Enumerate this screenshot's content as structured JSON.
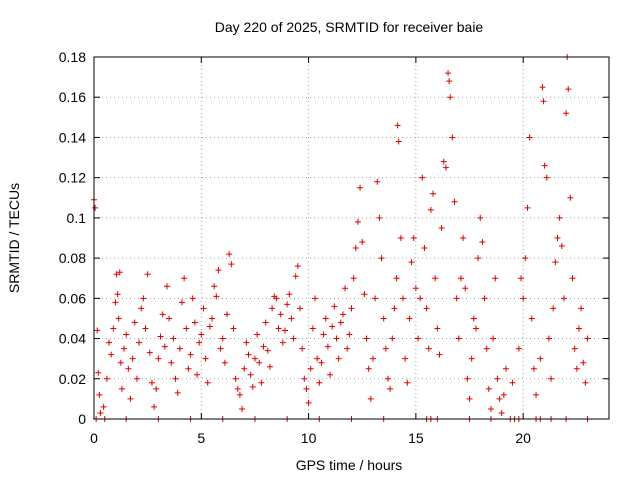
{
  "colors": {
    "series": "#e00000",
    "grid": "#a0a0a0",
    "axis": "#000000"
  },
  "chart_data": {
    "type": "scatter",
    "title": "Day 220 of 2025, SRMTID for receiver baie",
    "xlabel": "GPS time / hours",
    "ylabel": "SRMTID / TECUs",
    "xlim": [
      0,
      24
    ],
    "ylim": [
      0,
      0.18
    ],
    "xticks": [
      0,
      5,
      10,
      15,
      20
    ],
    "xtick_labels": [
      "0",
      "5",
      "10",
      "15",
      "20"
    ],
    "yticks": [
      0,
      0.02,
      0.04,
      0.06,
      0.08,
      0.1,
      0.12,
      0.14,
      0.16,
      0.18
    ],
    "ytick_labels": [
      "0",
      "0.02",
      "0.04",
      "0.06",
      "0.08",
      "0.1",
      "0.12",
      "0.14",
      "0.16",
      "0.18"
    ],
    "grid": true,
    "marker": "+",
    "series": [
      {
        "name": "SRMTID",
        "points": [
          [
            0.0,
            0.109
          ],
          [
            0.05,
            0.105
          ],
          [
            0.15,
            0.044
          ],
          [
            0.2,
            0.023
          ],
          [
            0.25,
            0.012
          ],
          [
            0.3,
            0.003
          ],
          [
            0.45,
            0.006
          ],
          [
            0.6,
            0.02
          ],
          [
            0.7,
            0.038
          ],
          [
            0.8,
            0.032
          ],
          [
            0.9,
            0.045
          ],
          [
            1.0,
            0.058
          ],
          [
            1.05,
            0.072
          ],
          [
            1.1,
            0.062
          ],
          [
            1.15,
            0.05
          ],
          [
            1.2,
            0.073
          ],
          [
            1.25,
            0.028
          ],
          [
            1.3,
            0.015
          ],
          [
            1.4,
            0.035
          ],
          [
            1.5,
            0.042
          ],
          [
            1.6,
            0.025
          ],
          [
            1.7,
            0.01
          ],
          [
            1.8,
            0.03
          ],
          [
            1.9,
            0.048
          ],
          [
            2.0,
            0.02
          ],
          [
            2.1,
            0.038
          ],
          [
            2.2,
            0.055
          ],
          [
            2.3,
            0.06
          ],
          [
            2.4,
            0.045
          ],
          [
            2.5,
            0.072
          ],
          [
            2.6,
            0.033
          ],
          [
            2.7,
            0.018
          ],
          [
            2.8,
            0.006
          ],
          [
            2.9,
            0.015
          ],
          [
            3.0,
            0.03
          ],
          [
            3.1,
            0.041
          ],
          [
            3.2,
            0.052
          ],
          [
            3.3,
            0.036
          ],
          [
            3.4,
            0.066
          ],
          [
            3.5,
            0.05
          ],
          [
            3.6,
            0.028
          ],
          [
            3.7,
            0.04
          ],
          [
            3.8,
            0.02
          ],
          [
            3.9,
            0.013
          ],
          [
            4.0,
            0.035
          ],
          [
            4.1,
            0.058
          ],
          [
            4.2,
            0.07
          ],
          [
            4.3,
            0.045
          ],
          [
            4.4,
            0.025
          ],
          [
            4.5,
            0.032
          ],
          [
            4.6,
            0.06
          ],
          [
            4.7,
            0.048
          ],
          [
            4.8,
            0.022
          ],
          [
            4.9,
            0.038
          ],
          [
            5.0,
            0.042
          ],
          [
            5.1,
            0.055
          ],
          [
            5.2,
            0.03
          ],
          [
            5.3,
            0.018
          ],
          [
            5.4,
            0.046
          ],
          [
            5.5,
            0.05
          ],
          [
            5.6,
            0.066
          ],
          [
            5.7,
            0.061
          ],
          [
            5.8,
            0.074
          ],
          [
            5.9,
            0.035
          ],
          [
            6.0,
            0.04
          ],
          [
            6.1,
            0.028
          ],
          [
            6.2,
            0.052
          ],
          [
            6.3,
            0.082
          ],
          [
            6.4,
            0.077
          ],
          [
            6.5,
            0.045
          ],
          [
            6.6,
            0.02
          ],
          [
            6.7,
            0.015
          ],
          [
            6.8,
            0.012
          ],
          [
            6.9,
            0.005
          ],
          [
            7.0,
            0.025
          ],
          [
            7.1,
            0.038
          ],
          [
            7.2,
            0.032
          ],
          [
            7.3,
            0.022
          ],
          [
            7.4,
            0.016
          ],
          [
            7.5,
            0.03
          ],
          [
            7.6,
            0.042
          ],
          [
            7.7,
            0.028
          ],
          [
            7.8,
            0.018
          ],
          [
            7.9,
            0.036
          ],
          [
            8.0,
            0.048
          ],
          [
            8.1,
            0.034
          ],
          [
            8.2,
            0.026
          ],
          [
            8.3,
            0.055
          ],
          [
            8.4,
            0.061
          ],
          [
            8.5,
            0.06
          ],
          [
            8.6,
            0.045
          ],
          [
            8.7,
            0.052
          ],
          [
            8.8,
            0.038
          ],
          [
            8.9,
            0.044
          ],
          [
            9.0,
            0.057
          ],
          [
            9.1,
            0.062
          ],
          [
            9.2,
            0.05
          ],
          [
            9.3,
            0.04
          ],
          [
            9.4,
            0.071
          ],
          [
            9.5,
            0.076
          ],
          [
            9.6,
            0.055
          ],
          [
            9.7,
            0.035
          ],
          [
            9.8,
            0.02
          ],
          [
            9.9,
            0.015
          ],
          [
            10.0,
            0.008
          ],
          [
            10.1,
            0.025
          ],
          [
            10.2,
            0.045
          ],
          [
            10.3,
            0.06
          ],
          [
            10.4,
            0.03
          ],
          [
            10.5,
            0.018
          ],
          [
            10.6,
            0.028
          ],
          [
            10.7,
            0.042
          ],
          [
            10.8,
            0.05
          ],
          [
            10.9,
            0.036
          ],
          [
            11.0,
            0.022
          ],
          [
            11.1,
            0.046
          ],
          [
            11.2,
            0.056
          ],
          [
            11.3,
            0.04
          ],
          [
            11.4,
            0.03
          ],
          [
            11.5,
            0.048
          ],
          [
            11.6,
            0.052
          ],
          [
            11.7,
            0.065
          ],
          [
            11.8,
            0.035
          ],
          [
            11.9,
            0.042
          ],
          [
            12.0,
            0.055
          ],
          [
            12.1,
            0.07
          ],
          [
            12.2,
            0.085
          ],
          [
            12.3,
            0.098
          ],
          [
            12.4,
            0.115
          ],
          [
            12.5,
            0.088
          ],
          [
            12.6,
            0.062
          ],
          [
            12.7,
            0.04
          ],
          [
            12.8,
            0.025
          ],
          [
            12.9,
            0.01
          ],
          [
            13.0,
            0.03
          ],
          [
            13.1,
            0.06
          ],
          [
            13.2,
            0.118
          ],
          [
            13.3,
            0.1
          ],
          [
            13.4,
            0.08
          ],
          [
            13.5,
            0.05
          ],
          [
            13.6,
            0.035
          ],
          [
            13.7,
            0.02
          ],
          [
            13.8,
            0.015
          ],
          [
            13.9,
            0.04
          ],
          [
            14.0,
            0.055
          ],
          [
            14.1,
            0.07
          ],
          [
            14.15,
            0.146
          ],
          [
            14.2,
            0.138
          ],
          [
            14.3,
            0.09
          ],
          [
            14.4,
            0.06
          ],
          [
            14.5,
            0.03
          ],
          [
            14.6,
            0.018
          ],
          [
            14.7,
            0.05
          ],
          [
            14.8,
            0.078
          ],
          [
            14.9,
            0.09
          ],
          [
            15.0,
            0.065
          ],
          [
            15.1,
            0.04
          ],
          [
            15.2,
            0.06
          ],
          [
            15.3,
            0.12
          ],
          [
            15.4,
            0.085
          ],
          [
            15.5,
            0.055
          ],
          [
            15.6,
            0.035
          ],
          [
            15.7,
            0.104
          ],
          [
            15.8,
            0.112
          ],
          [
            15.9,
            0.07
          ],
          [
            16.0,
            0.045
          ],
          [
            16.1,
            0.032
          ],
          [
            16.2,
            0.095
          ],
          [
            16.3,
            0.128
          ],
          [
            16.4,
            0.125
          ],
          [
            16.5,
            0.172
          ],
          [
            16.55,
            0.168
          ],
          [
            16.6,
            0.16
          ],
          [
            16.7,
            0.14
          ],
          [
            16.8,
            0.108
          ],
          [
            16.9,
            0.06
          ],
          [
            17.0,
            0.04
          ],
          [
            17.1,
            0.07
          ],
          [
            17.2,
            0.09
          ],
          [
            17.3,
            0.065
          ],
          [
            17.4,
            0.02
          ],
          [
            17.5,
            0.01
          ],
          [
            17.6,
            0.03
          ],
          [
            17.7,
            0.05
          ],
          [
            17.8,
            0.045
          ],
          [
            17.9,
            0.08
          ],
          [
            18.0,
            0.1
          ],
          [
            18.1,
            0.088
          ],
          [
            18.2,
            0.06
          ],
          [
            18.3,
            0.035
          ],
          [
            18.4,
            0.015
          ],
          [
            18.5,
            0.005
          ],
          [
            18.6,
            0.04
          ],
          [
            18.7,
            0.07
          ],
          [
            18.8,
            0.02
          ],
          [
            18.9,
            0.01
          ],
          [
            19.0,
            0.003
          ],
          [
            19.1,
            0.012
          ],
          [
            19.2,
            0.025
          ],
          [
            19.5,
            0.018
          ],
          [
            19.8,
            0.035
          ],
          [
            19.9,
            0.07
          ],
          [
            20.0,
            0.06
          ],
          [
            20.1,
            0.08
          ],
          [
            20.2,
            0.105
          ],
          [
            20.3,
            0.14
          ],
          [
            20.4,
            0.05
          ],
          [
            20.5,
            0.025
          ],
          [
            20.6,
            0.012
          ],
          [
            20.8,
            0.03
          ],
          [
            20.9,
            0.165
          ],
          [
            20.95,
            0.158
          ],
          [
            21.0,
            0.126
          ],
          [
            21.1,
            0.12
          ],
          [
            21.2,
            0.04
          ],
          [
            21.3,
            0.02
          ],
          [
            21.4,
            0.055
          ],
          [
            21.5,
            0.078
          ],
          [
            21.6,
            0.09
          ],
          [
            21.7,
            0.1
          ],
          [
            21.8,
            0.086
          ],
          [
            21.9,
            0.06
          ],
          [
            22.0,
            0.152
          ],
          [
            22.05,
            0.18
          ],
          [
            22.1,
            0.164
          ],
          [
            22.2,
            0.11
          ],
          [
            22.3,
            0.07
          ],
          [
            22.4,
            0.035
          ],
          [
            22.5,
            0.025
          ],
          [
            22.6,
            0.045
          ],
          [
            22.7,
            0.055
          ],
          [
            22.8,
            0.028
          ],
          [
            22.9,
            0.018
          ],
          [
            23.0,
            0.04
          ],
          [
            0.1,
            0.0
          ],
          [
            0.5,
            0.0
          ],
          [
            1.5,
            0.0
          ],
          [
            3.0,
            0.0
          ],
          [
            4.5,
            0.0
          ],
          [
            6.0,
            0.0
          ],
          [
            7.5,
            0.0
          ],
          [
            9.0,
            0.0
          ],
          [
            10.5,
            0.0
          ],
          [
            12.0,
            0.0
          ],
          [
            13.5,
            0.0
          ],
          [
            15.5,
            0.0
          ],
          [
            15.7,
            0.0
          ],
          [
            16.0,
            0.0
          ],
          [
            17.5,
            0.0
          ],
          [
            18.5,
            0.0
          ],
          [
            19.4,
            0.0
          ],
          [
            19.6,
            0.0
          ],
          [
            19.8,
            0.0
          ],
          [
            20.6,
            0.0
          ],
          [
            20.8,
            0.0
          ],
          [
            21.3,
            0.0
          ],
          [
            22.0,
            0.0
          ],
          [
            23.0,
            0.0
          ]
        ]
      }
    ]
  }
}
